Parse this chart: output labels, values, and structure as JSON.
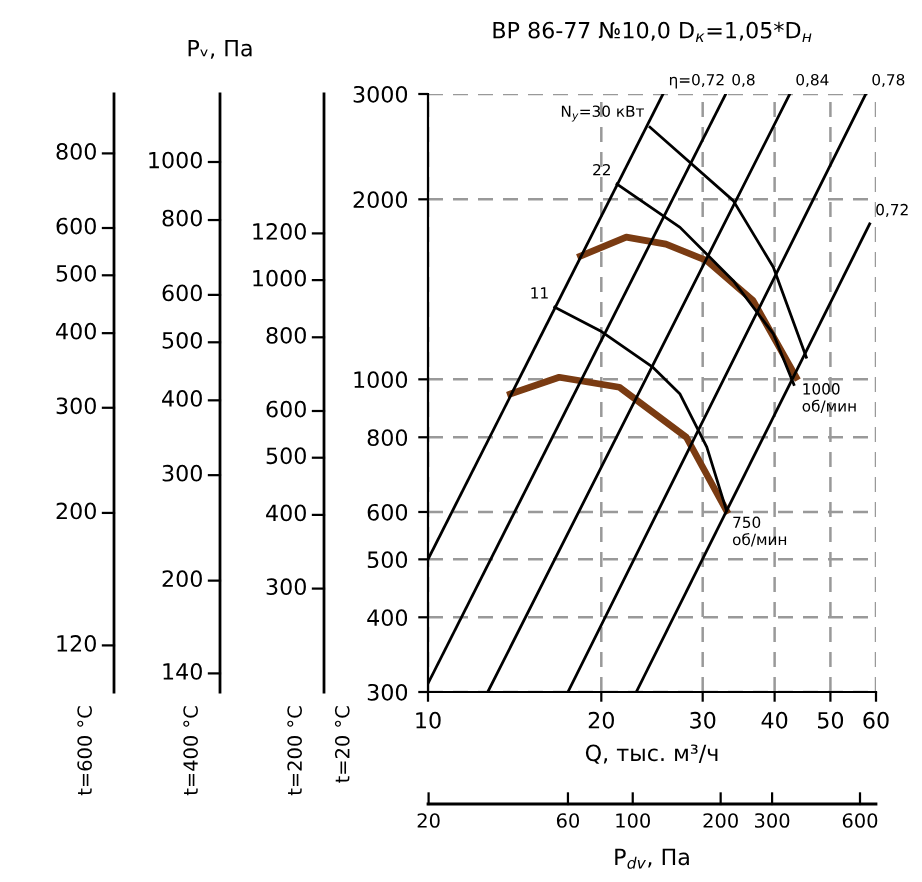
{
  "chart_data": {
    "type": "line",
    "title": "ВР 86-77 №10,0 D$_{к}$=1,05*D$_{н}$",
    "xlabel": "Q, тыс. м³/ч",
    "ylabel": "t=20 °C",
    "log": "xy",
    "grid": true,
    "line_style": "solid",
    "marker": "none",
    "xlim": [
      10,
      60
    ],
    "ylim": [
      300,
      3000
    ],
    "xticks": [
      10,
      20,
      30,
      40,
      50,
      60
    ],
    "yticks": [
      300,
      400,
      500,
      600,
      800,
      1000,
      2000,
      3000
    ],
    "series": [
      {
        "color": "#7a3b12",
        "x": [
          18.4,
          22.1,
          25.9,
          30.5,
          36.7,
          43.6
        ],
        "values": [
          1607,
          1729,
          1683,
          1579,
          1354,
          1008
        ]
      },
      {
        "color": "#7a3b12",
        "x": [
          13.9,
          16.9,
          21.5,
          28.1,
          33.0
        ],
        "values": [
          945,
          1008,
          970,
          800,
          603
        ]
      },
      {
        "color": "#000000",
        "x": [
          10,
          25.6
        ],
        "values": [
          500,
          3000
        ]
      },
      {
        "color": "#000000",
        "x": [
          10,
          32.9
        ],
        "values": [
          310,
          3000
        ]
      },
      {
        "color": "#000000",
        "x": [
          12.7,
          42.5
        ],
        "values": [
          300,
          3000
        ]
      },
      {
        "color": "#000000",
        "x": [
          17.5,
          57.6
        ],
        "values": [
          300,
          3000
        ]
      },
      {
        "color": "#000000",
        "x": [
          23.0,
          58.5
        ],
        "values": [
          300,
          1819
        ]
      },
      {
        "color": "#000000",
        "x": [
          24.3,
          33.9,
          39.8,
          45.4
        ],
        "values": [
          2640,
          1990,
          1540,
          1089
        ]
      },
      {
        "color": "#000000",
        "x": [
          21.3,
          27.4,
          33.9,
          39.8,
          43.2
        ],
        "values": [
          2121,
          1795,
          1462,
          1191,
          980
        ]
      },
      {
        "color": "#000000",
        "x": [
          16.6,
          19.9,
          24.6,
          27.4,
          30.5,
          33.0
        ],
        "values": [
          1320,
          1206,
          1047,
          945,
          770,
          603
        ]
      }
    ],
    "annotations": [
      "Pᵥ, Па",
      "t=600 °C",
      "120",
      "200",
      "300",
      "400",
      "500",
      "600",
      "800",
      "t=400 °C",
      "140",
      "200",
      "300",
      "400",
      "500",
      "600",
      "800",
      "1000",
      "t=200 °C",
      "300",
      "400",
      "500",
      "600",
      "800",
      "1000",
      "1200",
      "P$_{dv}$, Па",
      "20",
      "60",
      "100",
      "200",
      "300",
      "600",
      {
        "text": "η=0,72",
        "x": 25.6,
        "y": 3000
      },
      {
        "text": "0,8",
        "x": 32.9,
        "y": 3000
      },
      {
        "text": "0,84",
        "x": 42.5,
        "y": 3000
      },
      {
        "text": "0,78",
        "x": 57.6,
        "y": 3000
      },
      {
        "text": "0,72",
        "x": 58.5,
        "y": 1819
      },
      {
        "text": "N$_{у}$=30 кВт",
        "x": 24.3,
        "y": 2640
      },
      {
        "text": "22",
        "x": 21.3,
        "y": 2121
      },
      {
        "text": "11",
        "x": 16.6,
        "y": 1320
      },
      {
        "text": "1000\nоб/мин",
        "x": 43.6,
        "y": 1008
      },
      {
        "text": "750\nоб/мин",
        "x": 33.0,
        "y": 603
      }
    ]
  }
}
